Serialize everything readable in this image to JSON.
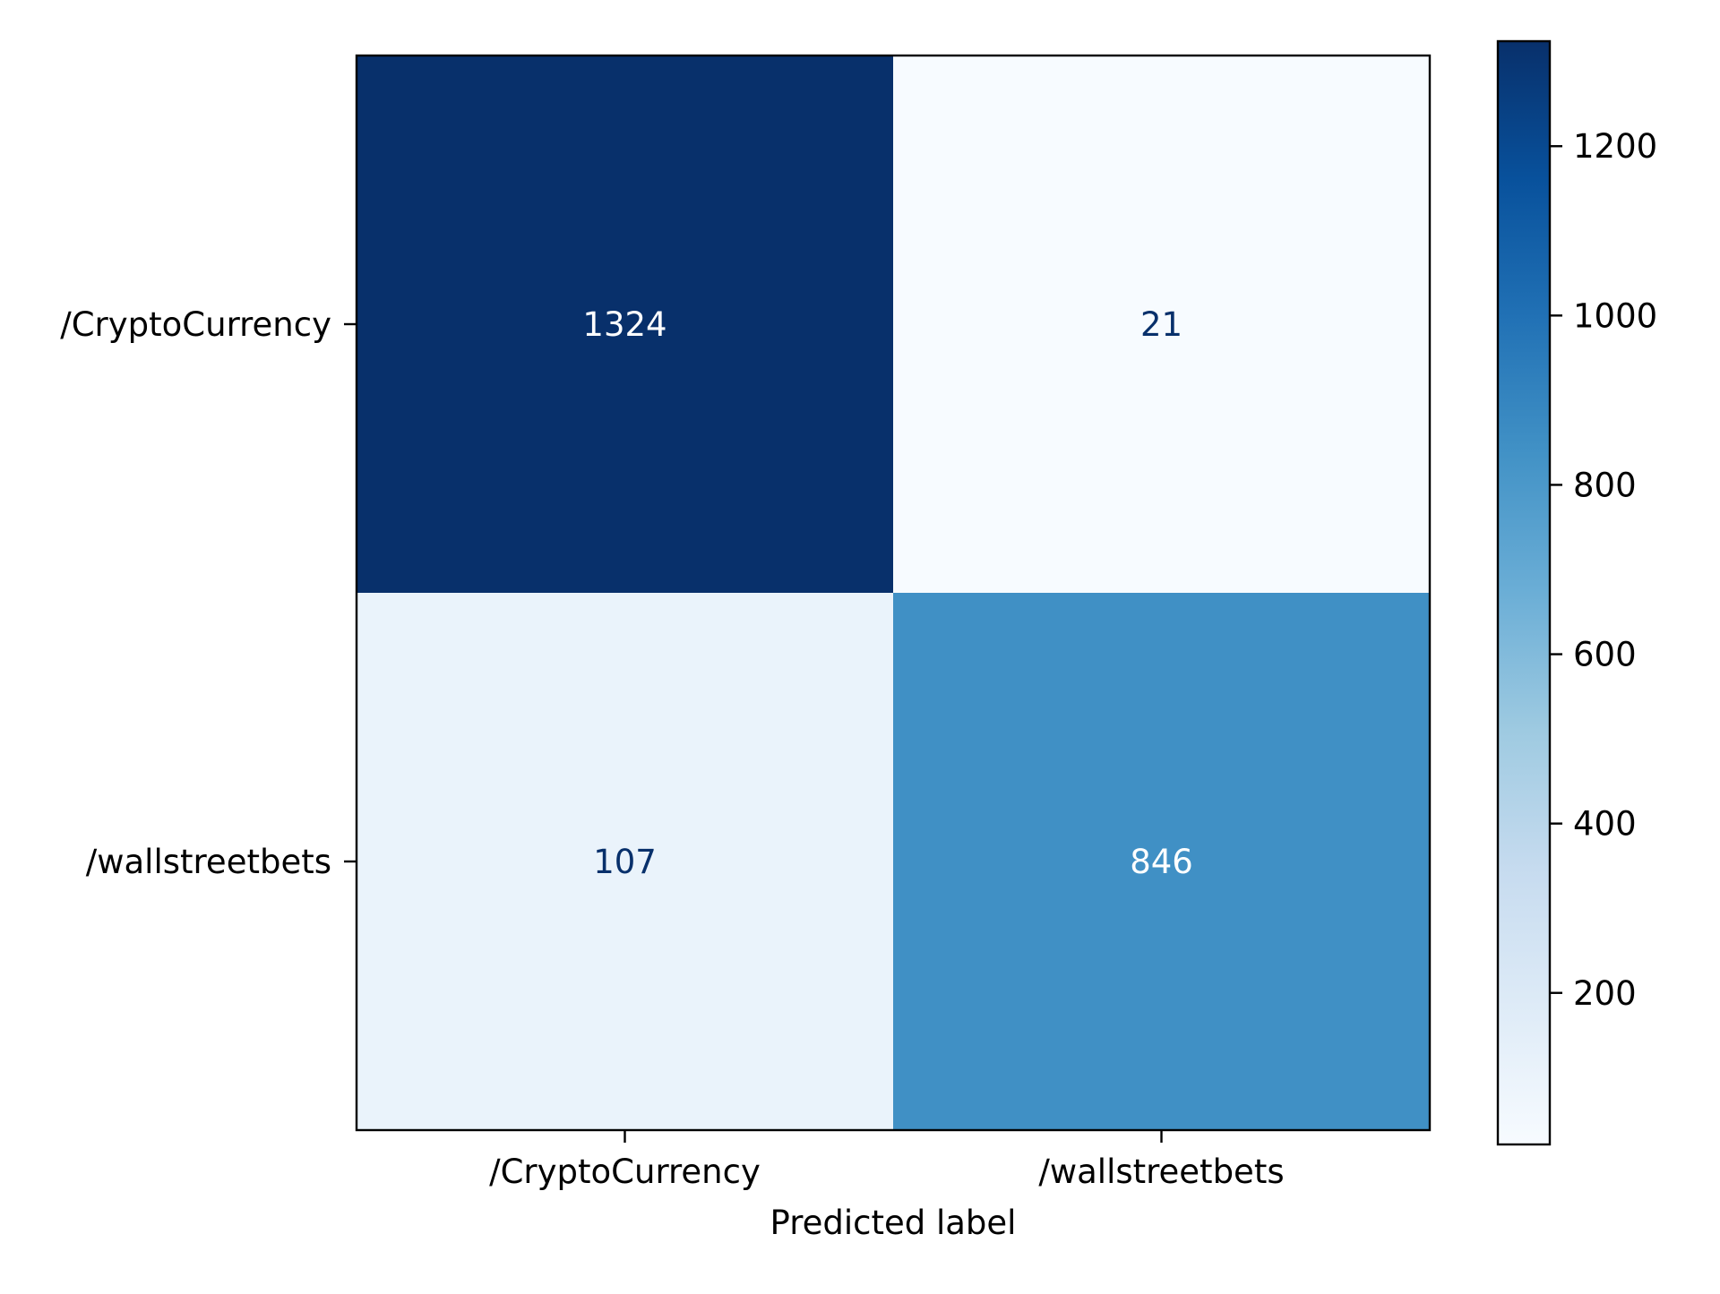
{
  "chart_data": {
    "type": "heatmap",
    "title": "",
    "xlabel": "Predicted label",
    "ylabel": "",
    "x_categories": [
      "/CryptoCurrency",
      "/wallstreetbets"
    ],
    "y_categories": [
      "/CryptoCurrency",
      "/wallstreetbets"
    ],
    "values": [
      [
        1324,
        21
      ],
      [
        107,
        846
      ]
    ],
    "colormap": "Blues",
    "colorbar": {
      "range": [
        21,
        1324
      ],
      "ticks": [
        200,
        400,
        600,
        800,
        1000,
        1200
      ]
    },
    "colors": {
      "text_on_dark": "#ffffff",
      "text_on_light": "#08306b"
    }
  }
}
